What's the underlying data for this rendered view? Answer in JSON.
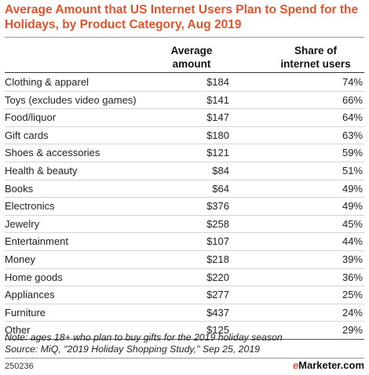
{
  "colors": {
    "title": "#e2532c",
    "brand_accent": "#e2532c",
    "rule": "#d4d4d4"
  },
  "chart_data": {
    "type": "table",
    "title": "Average Amount that US Internet Users Plan to Spend for the Holidays, by Product Category, Aug 2019",
    "columns": [
      "",
      "Average amount",
      "Share of internet users"
    ],
    "categories": [
      "Clothing & apparel",
      "Toys (excludes video games)",
      "Food/liquor",
      "Gift cards",
      "Shoes & accessories",
      "Health & beauty",
      "Books",
      "Electronics",
      "Jewelry",
      "Entertainment",
      "Money",
      "Home goods",
      "Appliances",
      "Furniture",
      "Other"
    ],
    "rows": [
      {
        "category": "Clothing & apparel",
        "amount": "$184",
        "share": "74%"
      },
      {
        "category": "Toys (excludes video games)",
        "amount": "$141",
        "share": "66%"
      },
      {
        "category": "Food/liquor",
        "amount": "$147",
        "share": "64%"
      },
      {
        "category": "Gift cards",
        "amount": "$180",
        "share": "63%"
      },
      {
        "category": "Shoes & accessories",
        "amount": "$121",
        "share": "59%"
      },
      {
        "category": "Health & beauty",
        "amount": "$84",
        "share": "51%"
      },
      {
        "category": "Books",
        "amount": "$64",
        "share": "49%"
      },
      {
        "category": "Electronics",
        "amount": "$376",
        "share": "49%"
      },
      {
        "category": "Jewelry",
        "amount": "$258",
        "share": "45%"
      },
      {
        "category": "Entertainment",
        "amount": "$107",
        "share": "44%"
      },
      {
        "category": "Money",
        "amount": "$218",
        "share": "39%"
      },
      {
        "category": "Home goods",
        "amount": "$220",
        "share": "36%"
      },
      {
        "category": "Appliances",
        "amount": "$277",
        "share": "25%"
      },
      {
        "category": "Furniture",
        "amount": "$437",
        "share": "24%"
      },
      {
        "category": "Other",
        "amount": "$125",
        "share": "29%"
      }
    ],
    "header_amount": [
      "Average",
      "amount"
    ],
    "header_share": [
      "Share of",
      "internet users"
    ],
    "note": "Note: ages 18+ who plan to buy gifts for the 2019 holiday season",
    "source": "Source: MiQ, \"2019 Holiday Shopping Study,\" Sep 25, 2019"
  },
  "footer": {
    "chart_id": "250236",
    "brand_prefix": "e",
    "brand_suffix": "Marketer",
    "brand_tld": ".com"
  }
}
